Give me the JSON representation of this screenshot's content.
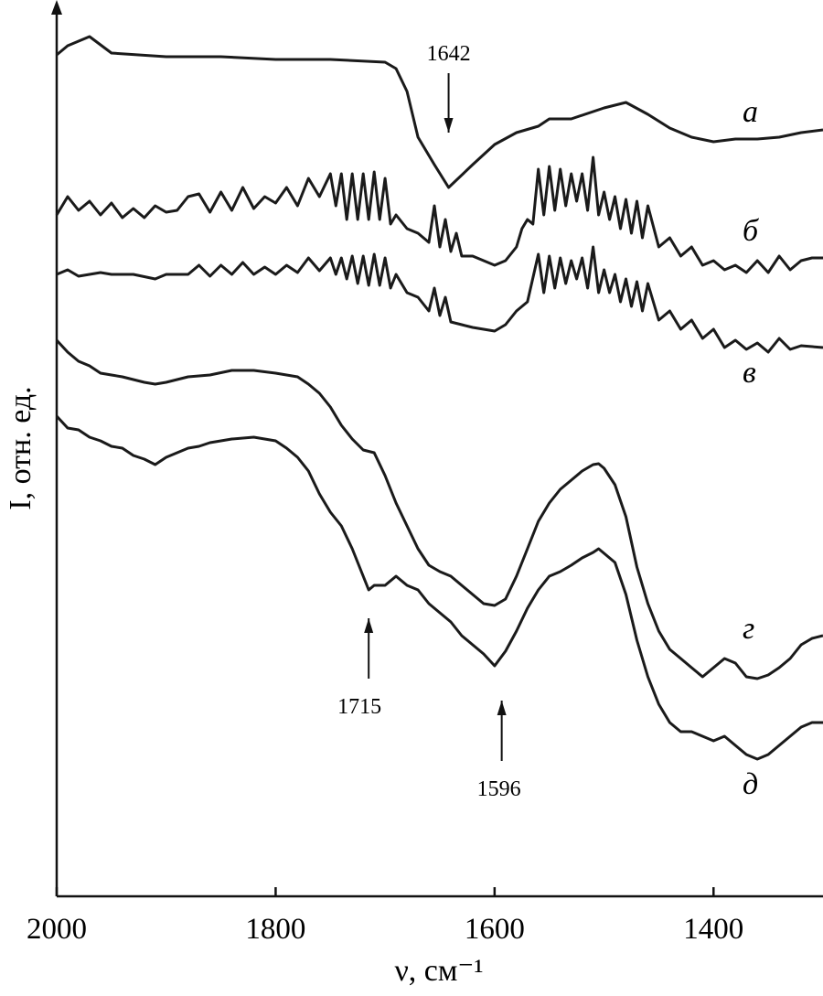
{
  "chart_data": {
    "type": "line",
    "xlabel": "ν, см⁻¹",
    "ylabel": "I, отн. ед.",
    "xlim": [
      2000,
      1300
    ],
    "x_reversed": true,
    "ylim": [
      20,
      1000
    ],
    "y_ticks": false,
    "grid": false,
    "line_color": "#1a1a1a",
    "x_ticks": [
      2000,
      1800,
      1600,
      1400
    ],
    "x_tick_labels": [
      "2000",
      "1800",
      "1600",
      "1400"
    ],
    "series": [
      {
        "name": "а",
        "x": [
          2000,
          1990,
          1970,
          1950,
          1900,
          1850,
          1800,
          1750,
          1700,
          1690,
          1680,
          1670,
          1655,
          1642,
          1620,
          1600,
          1580,
          1560,
          1550,
          1530,
          1500,
          1480,
          1460,
          1440,
          1420,
          1400,
          1380,
          1360,
          1340,
          1320,
          1300
        ],
        "y": [
          940,
          950,
          960,
          942,
          938,
          938,
          935,
          935,
          932,
          925,
          900,
          850,
          820,
          795,
          820,
          842,
          855,
          862,
          870,
          870,
          882,
          888,
          875,
          860,
          850,
          845,
          848,
          848,
          850,
          855,
          858
        ]
      },
      {
        "name": "б",
        "x": [
          2000,
          1990,
          1980,
          1970,
          1960,
          1950,
          1940,
          1930,
          1920,
          1910,
          1900,
          1890,
          1880,
          1870,
          1860,
          1850,
          1840,
          1830,
          1820,
          1810,
          1800,
          1790,
          1780,
          1770,
          1760,
          1750,
          1745,
          1740,
          1735,
          1730,
          1725,
          1720,
          1715,
          1710,
          1705,
          1700,
          1695,
          1690,
          1680,
          1670,
          1660,
          1655,
          1650,
          1645,
          1640,
          1635,
          1630,
          1620,
          1610,
          1600,
          1590,
          1580,
          1575,
          1570,
          1565,
          1560,
          1555,
          1550,
          1545,
          1540,
          1535,
          1530,
          1525,
          1520,
          1515,
          1510,
          1505,
          1500,
          1495,
          1490,
          1485,
          1480,
          1475,
          1470,
          1465,
          1460,
          1450,
          1440,
          1430,
          1420,
          1410,
          1400,
          1390,
          1380,
          1370,
          1360,
          1350,
          1340,
          1330,
          1320,
          1310,
          1300
        ],
        "y": [
          765,
          785,
          770,
          780,
          765,
          778,
          762,
          772,
          762,
          775,
          768,
          770,
          785,
          788,
          768,
          790,
          770,
          795,
          772,
          785,
          778,
          795,
          775,
          805,
          785,
          810,
          775,
          810,
          760,
          810,
          760,
          810,
          760,
          812,
          760,
          805,
          755,
          765,
          750,
          745,
          735,
          775,
          730,
          760,
          725,
          745,
          720,
          720,
          715,
          710,
          715,
          730,
          750,
          760,
          755,
          815,
          765,
          818,
          770,
          815,
          775,
          810,
          780,
          810,
          770,
          828,
          765,
          790,
          760,
          785,
          750,
          782,
          745,
          780,
          740,
          775,
          730,
          740,
          720,
          730,
          710,
          715,
          705,
          710,
          702,
          715,
          702,
          720,
          705,
          715,
          718,
          718
        ]
      },
      {
        "name": "в",
        "x": [
          2000,
          1990,
          1980,
          1960,
          1950,
          1930,
          1910,
          1900,
          1880,
          1870,
          1860,
          1850,
          1840,
          1830,
          1820,
          1810,
          1800,
          1790,
          1780,
          1770,
          1760,
          1750,
          1745,
          1740,
          1735,
          1730,
          1725,
          1720,
          1715,
          1710,
          1705,
          1700,
          1695,
          1690,
          1680,
          1670,
          1660,
          1655,
          1650,
          1645,
          1640,
          1630,
          1620,
          1610,
          1600,
          1590,
          1580,
          1570,
          1560,
          1555,
          1550,
          1545,
          1540,
          1535,
          1530,
          1525,
          1520,
          1515,
          1510,
          1505,
          1500,
          1495,
          1490,
          1485,
          1480,
          1475,
          1470,
          1465,
          1460,
          1450,
          1440,
          1430,
          1420,
          1410,
          1400,
          1390,
          1380,
          1370,
          1360,
          1350,
          1340,
          1330,
          1320,
          1300
        ],
        "y": [
          700,
          705,
          698,
          702,
          700,
          700,
          695,
          700,
          700,
          710,
          698,
          710,
          700,
          713,
          700,
          708,
          700,
          710,
          702,
          718,
          704,
          718,
          700,
          718,
          695,
          720,
          690,
          720,
          688,
          722,
          688,
          718,
          685,
          700,
          680,
          675,
          660,
          685,
          655,
          675,
          648,
          645,
          642,
          640,
          638,
          645,
          660,
          670,
          722,
          680,
          720,
          685,
          718,
          690,
          715,
          695,
          718,
          685,
          730,
          680,
          705,
          680,
          700,
          670,
          695,
          665,
          692,
          660,
          690,
          650,
          660,
          640,
          650,
          630,
          640,
          620,
          628,
          618,
          625,
          615,
          630,
          618,
          622,
          620
        ]
      },
      {
        "name": "г",
        "x": [
          2000,
          1990,
          1980,
          1970,
          1960,
          1950,
          1940,
          1920,
          1910,
          1900,
          1880,
          1860,
          1840,
          1820,
          1800,
          1790,
          1780,
          1770,
          1760,
          1750,
          1740,
          1730,
          1720,
          1710,
          1700,
          1690,
          1680,
          1670,
          1660,
          1650,
          1640,
          1630,
          1620,
          1610,
          1600,
          1590,
          1580,
          1570,
          1560,
          1550,
          1540,
          1530,
          1520,
          1510,
          1505,
          1500,
          1490,
          1480,
          1470,
          1460,
          1450,
          1440,
          1430,
          1420,
          1410,
          1400,
          1390,
          1380,
          1370,
          1360,
          1350,
          1340,
          1330,
          1320,
          1310,
          1300
        ],
        "y": [
          628,
          615,
          605,
          600,
          592,
          590,
          588,
          582,
          580,
          582,
          588,
          590,
          595,
          595,
          592,
          590,
          588,
          580,
          570,
          555,
          535,
          520,
          508,
          505,
          480,
          450,
          425,
          400,
          382,
          375,
          370,
          360,
          350,
          340,
          338,
          345,
          370,
          400,
          430,
          450,
          465,
          475,
          485,
          492,
          493,
          488,
          470,
          435,
          380,
          340,
          310,
          290,
          280,
          270,
          260,
          270,
          280,
          275,
          260,
          258,
          262,
          270,
          280,
          295,
          302,
          305
        ]
      },
      {
        "name": "д",
        "x": [
          2000,
          1990,
          1980,
          1970,
          1960,
          1950,
          1940,
          1930,
          1920,
          1910,
          1900,
          1890,
          1880,
          1870,
          1860,
          1840,
          1820,
          1810,
          1800,
          1790,
          1780,
          1770,
          1760,
          1750,
          1740,
          1730,
          1720,
          1715,
          1710,
          1700,
          1690,
          1680,
          1670,
          1660,
          1650,
          1640,
          1630,
          1620,
          1610,
          1600,
          1590,
          1580,
          1570,
          1560,
          1550,
          1540,
          1530,
          1520,
          1510,
          1505,
          1500,
          1490,
          1480,
          1470,
          1460,
          1450,
          1440,
          1430,
          1420,
          1410,
          1400,
          1390,
          1380,
          1370,
          1360,
          1350,
          1340,
          1330,
          1320,
          1310,
          1300
        ],
        "y": [
          545,
          532,
          530,
          522,
          518,
          512,
          510,
          502,
          498,
          492,
          500,
          505,
          510,
          512,
          516,
          520,
          522,
          520,
          518,
          510,
          500,
          485,
          460,
          440,
          425,
          400,
          370,
          355,
          360,
          360,
          370,
          360,
          355,
          340,
          330,
          320,
          305,
          295,
          285,
          272,
          288,
          310,
          335,
          355,
          370,
          375,
          382,
          390,
          396,
          400,
          395,
          385,
          350,
          300,
          260,
          230,
          210,
          200,
          200,
          195,
          190,
          195,
          185,
          175,
          170,
          175,
          185,
          195,
          205,
          210,
          210
        ]
      }
    ],
    "annotations": [
      {
        "text": "1642",
        "x": 1642,
        "series": "а"
      },
      {
        "text": "1715",
        "x": 1715,
        "series": "д"
      },
      {
        "text": "1596",
        "x": 1596,
        "series": "д"
      }
    ]
  }
}
